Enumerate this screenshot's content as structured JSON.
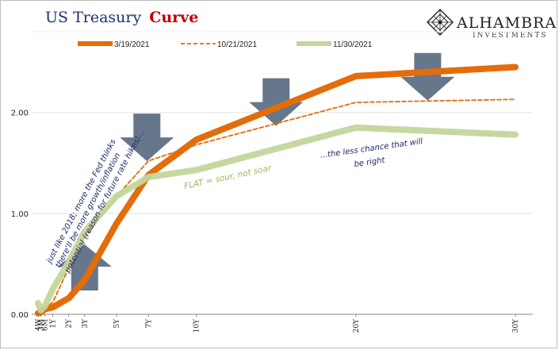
{
  "header": {
    "title_plain": "US Treasury",
    "title_accent": "Curve"
  },
  "brand": {
    "name": "ALHAMBRA",
    "subtitle": "INVESTMENTS",
    "logo_icon": "diamond-lattice-icon"
  },
  "colors": {
    "series_mar": "#e46c0a",
    "series_oct": "#e46c0a",
    "series_nov": "#c3d69b",
    "arrow": "#5e7085",
    "annotation_navy": "#1f2a6b",
    "annotation_green": "#9bbb59",
    "title_accent": "#c00000",
    "title_plain": "#1f2f6b"
  },
  "annotations": {
    "left_lines": [
      "just like 2018; more the Fed thinks",
      "there'll be more growth/inflation",
      "potential (reason for future rate hikes)..."
    ],
    "flat": "FLAT = sour, not soar",
    "right_lines": [
      "...the less chance that will",
      "be right"
    ]
  },
  "arrows": [
    {
      "direction": "down",
      "tenor": "7Y",
      "near_value": 1.95
    },
    {
      "direction": "down",
      "tenor": "15Y",
      "near_value": 2.3
    },
    {
      "direction": "down",
      "tenor": "25Y",
      "near_value": 2.55
    },
    {
      "direction": "up",
      "tenor": "3Y",
      "near_value": 0.35
    }
  ],
  "chart_data": {
    "type": "line",
    "title": "US Treasury Curve",
    "x_tick_labels": [
      "4W",
      "3M",
      "6M",
      "1Y",
      "2Y",
      "3Y",
      "5Y",
      "7Y",
      "10Y",
      "20Y",
      "30Y"
    ],
    "x_years": [
      0.077,
      0.25,
      0.5,
      1,
      2,
      3,
      5,
      7,
      10,
      20,
      30
    ],
    "ylim": [
      0,
      2.8
    ],
    "y_ticks": [
      0,
      1,
      2
    ],
    "y_tick_labels": [
      "0.00",
      "1.00",
      "2.00"
    ],
    "legend_position": "top",
    "grid": true,
    "series": [
      {
        "name": "3/19/2021",
        "style": "thick-solid",
        "values": [
          0.01,
          0.02,
          0.05,
          0.07,
          0.16,
          0.34,
          0.9,
          1.38,
          1.73,
          2.36,
          2.45
        ]
      },
      {
        "name": "10/21/2021",
        "style": "dashed",
        "values": [
          0.05,
          0.06,
          0.06,
          0.12,
          0.46,
          0.76,
          1.17,
          1.52,
          1.68,
          2.1,
          2.13
        ]
      },
      {
        "name": "11/30/2021",
        "style": "thick-light",
        "values": [
          0.11,
          0.04,
          0.08,
          0.25,
          0.52,
          0.82,
          1.17,
          1.36,
          1.43,
          1.85,
          1.78
        ]
      }
    ]
  }
}
